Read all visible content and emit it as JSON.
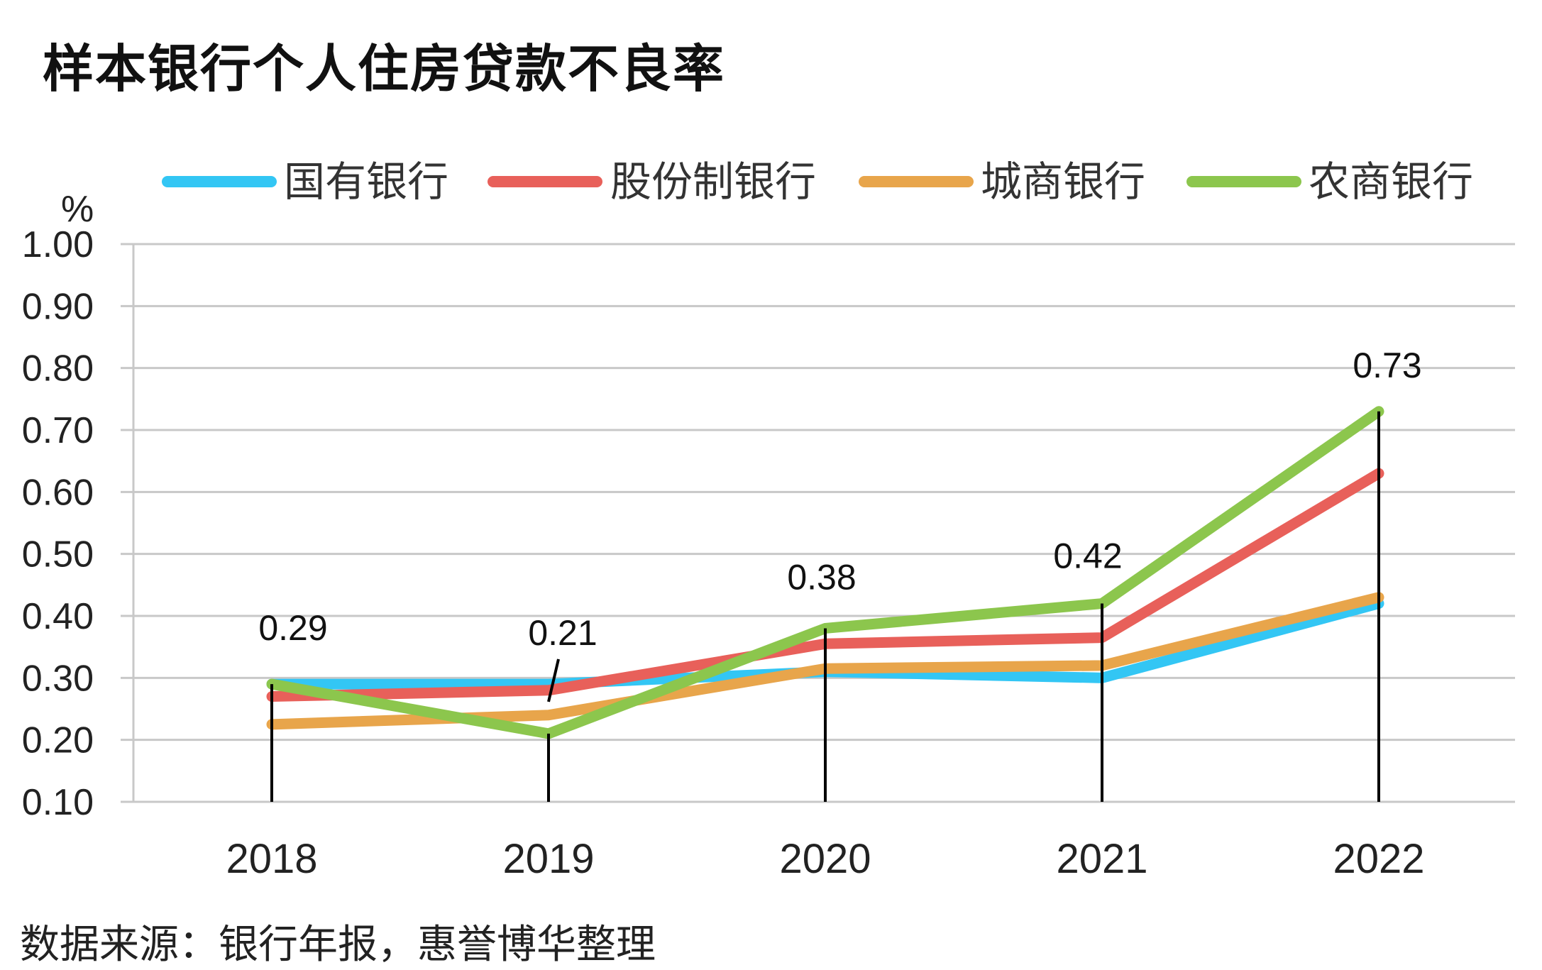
{
  "title": "样本银行个人住房贷款不良率",
  "source": "数据来源：银行年报，惠誉博华整理",
  "chart_data": {
    "type": "line",
    "unit": "%",
    "categories": [
      "2018",
      "2019",
      "2020",
      "2021",
      "2022"
    ],
    "ylim": [
      0.1,
      1.0
    ],
    "yticks": [
      "1.00",
      "0.90",
      "0.80",
      "0.70",
      "0.60",
      "0.50",
      "0.40",
      "0.30",
      "0.20",
      "0.10"
    ],
    "grid": true,
    "legend_position": "top",
    "series": [
      {
        "name": "国有银行",
        "color": "#33c6f4",
        "values": [
          0.29,
          0.29,
          0.31,
          0.3,
          0.42
        ]
      },
      {
        "name": "股份制银行",
        "color": "#e8605a",
        "values": [
          0.27,
          0.28,
          0.355,
          0.365,
          0.63
        ]
      },
      {
        "name": "城商银行",
        "color": "#e8a54b",
        "values": [
          0.225,
          0.24,
          0.315,
          0.32,
          0.43
        ]
      },
      {
        "name": "农商银行",
        "color": "#8cc64d",
        "values": [
          0.29,
          0.21,
          0.38,
          0.42,
          0.73
        ]
      }
    ],
    "data_labels": [
      "0.29",
      "0.21",
      "0.38",
      "0.42",
      "0.73"
    ]
  }
}
